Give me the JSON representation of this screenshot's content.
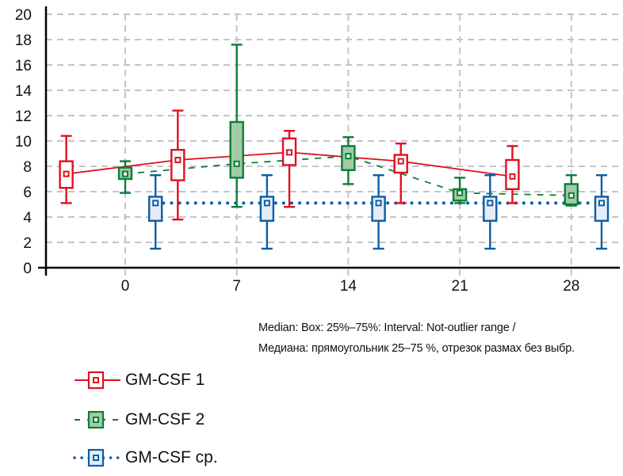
{
  "chart_data": {
    "type": "boxplot",
    "title": "",
    "xlabel": "",
    "ylabel": "",
    "ylim": [
      0,
      20
    ],
    "yticks": [
      "0",
      "2",
      "4",
      "6",
      "8",
      "10",
      "12",
      "14",
      "16",
      "18",
      "20"
    ],
    "categories": [
      "0",
      "7",
      "14",
      "21",
      "28"
    ],
    "grid": true,
    "note_lines": [
      "Median: Box: 25%–75%: Interval: Not-outlier range /",
      "Медиана: прямоугольник 25–75 %, отрезок размах без выбр."
    ],
    "legend_placement": "bottom-left",
    "series": [
      {
        "name": "GM-CSF 1",
        "color": "#e0101e",
        "fill": "#ffffff",
        "line_style": "solid",
        "offset_days": -3.7,
        "min": [
          5.1,
          3.8,
          4.8,
          5.1,
          5.1
        ],
        "q1": [
          6.3,
          6.9,
          8.1,
          7.5,
          6.2
        ],
        "median": [
          7.4,
          8.5,
          9.1,
          8.4,
          7.2
        ],
        "q3": [
          8.4,
          9.3,
          10.2,
          8.9,
          8.5
        ],
        "max": [
          10.4,
          12.4,
          10.8,
          9.8,
          9.6
        ]
      },
      {
        "name": "GM-CSF 2",
        "color": "#0b7d3a",
        "fill": "#a3cba5",
        "line_style": "dashed",
        "offset_days": 0,
        "min": [
          5.9,
          4.8,
          6.6,
          5.1,
          4.9
        ],
        "q1": [
          7.0,
          7.1,
          7.7,
          5.3,
          5.0
        ],
        "median": [
          7.4,
          8.2,
          8.8,
          5.9,
          5.7
        ],
        "q3": [
          7.9,
          11.5,
          9.6,
          6.2,
          6.6
        ],
        "max": [
          8.4,
          17.6,
          10.3,
          7.1,
          7.3
        ]
      },
      {
        "name": "GM-CSF ср.",
        "color": "#0a5ea8",
        "fill": "#e6ecf7",
        "line_style": "dotted",
        "offset_days": 1.9,
        "min": [
          1.5,
          1.5,
          1.5,
          1.5,
          1.5
        ],
        "q1": [
          3.7,
          3.7,
          3.7,
          3.7,
          3.7
        ],
        "median": [
          5.1,
          5.1,
          5.1,
          5.1,
          5.1
        ],
        "q3": [
          5.6,
          5.6,
          5.6,
          5.6,
          5.6
        ],
        "max": [
          7.3,
          7.3,
          7.3,
          7.3,
          7.3
        ]
      }
    ]
  }
}
